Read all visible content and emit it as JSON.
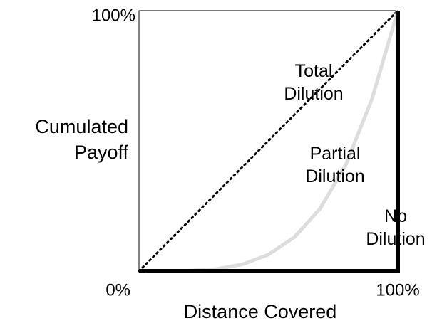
{
  "chart_data": {
    "type": "line",
    "ylabel": "Cumulated Payoff",
    "xlabel": "Distance Covered",
    "xlim": [
      0,
      100
    ],
    "ylim": [
      0,
      100
    ],
    "xticks": [
      {
        "value": 100,
        "label": "100%"
      }
    ],
    "yticks": [
      {
        "value": 0,
        "label": "0%"
      },
      {
        "value": 100,
        "label": "100%"
      }
    ],
    "grid": false,
    "series": [
      {
        "name": "Total Dilution",
        "color": "#000000",
        "style": "dotted",
        "x": [
          0,
          100
        ],
        "values": [
          0,
          100
        ]
      },
      {
        "name": "Partial Dilution",
        "color": "#dddddd",
        "style": "solid",
        "x": [
          0,
          10,
          20,
          30,
          40,
          50,
          60,
          70,
          80,
          90,
          100
        ],
        "values": [
          0,
          0,
          0.2,
          0.8,
          2.6,
          6.3,
          13,
          24,
          41,
          66,
          100
        ]
      },
      {
        "name": "No Dilution",
        "color": "#000000",
        "style": "thick",
        "x": [
          0,
          100,
          100
        ],
        "values": [
          0,
          0,
          100
        ]
      }
    ]
  }
}
